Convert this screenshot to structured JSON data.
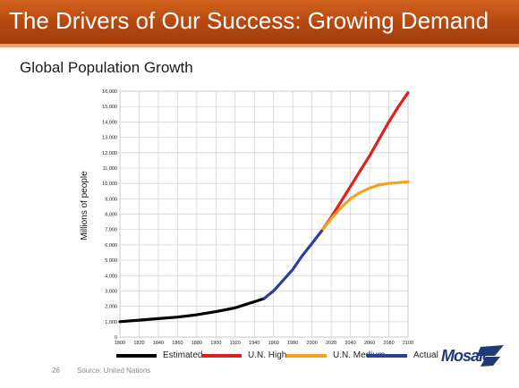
{
  "slide": {
    "title": "The Drivers of Our Success: Growing Demand",
    "subtitle": "Global Population Growth",
    "page_number": "26",
    "source": "Source: United Nations",
    "logo_text": "Mosaic",
    "colors": {
      "banner": "#b4470f",
      "logo": "#1e3a78"
    }
  },
  "chart_data": {
    "type": "line",
    "title": "",
    "xlabel": "",
    "ylabel": "Millions of people",
    "xlim": [
      1800,
      2100
    ],
    "ylim": [
      0,
      16000
    ],
    "grid": true,
    "legend_position": "bottom",
    "x_ticks": [
      1800,
      1820,
      1840,
      1860,
      1880,
      1900,
      1920,
      1940,
      1960,
      1980,
      2000,
      2020,
      2040,
      2060,
      2080,
      2100
    ],
    "x_tick_labels": [
      "1800",
      "1820",
      "1840",
      "1860",
      "1880",
      "1900",
      "1920",
      "1940",
      "1960",
      "1980",
      "2000",
      "2020",
      "2040",
      "2060",
      "2080",
      "2100"
    ],
    "y_ticks": [
      0,
      1000,
      2000,
      3000,
      4000,
      5000,
      6000,
      7000,
      8000,
      9000,
      10000,
      11000,
      12000,
      13000,
      14000,
      15000,
      16000
    ],
    "y_tick_labels": [
      "0",
      "1,000",
      "2,000",
      "3,000",
      "4,000",
      "5,000",
      "6,000",
      "7,000",
      "8,000",
      "9,000",
      "10,000",
      "11,000",
      "12,000",
      "13,000",
      "14,000",
      "15,000",
      "16,000"
    ],
    "series": [
      {
        "name": "Estimated",
        "color": "#000000",
        "x": [
          1800,
          1820,
          1840,
          1860,
          1880,
          1900,
          1920,
          1930,
          1940,
          1950
        ],
        "y": [
          1000,
          1100,
          1200,
          1300,
          1450,
          1650,
          1900,
          2100,
          2300,
          2500
        ]
      },
      {
        "name": "U.N. High",
        "color": "#e02020",
        "x": [
          2010,
          2020,
          2030,
          2040,
          2050,
          2060,
          2070,
          2080,
          2090,
          2100
        ],
        "y": [
          6900,
          7800,
          8800,
          9800,
          10800,
          11800,
          12900,
          14000,
          15000,
          15900
        ]
      },
      {
        "name": "U.N. Medium",
        "color": "#f5a020",
        "x": [
          2010,
          2020,
          2030,
          2040,
          2050,
          2060,
          2070,
          2080,
          2090,
          2100
        ],
        "y": [
          6900,
          7700,
          8400,
          9000,
          9400,
          9700,
          9900,
          10000,
          10050,
          10100
        ]
      },
      {
        "name": "Actual",
        "color": "#2b3f9a",
        "x": [
          1950,
          1960,
          1970,
          1980,
          1990,
          2000,
          2010
        ],
        "y": [
          2500,
          3000,
          3700,
          4400,
          5300,
          6100,
          6900
        ]
      }
    ]
  }
}
